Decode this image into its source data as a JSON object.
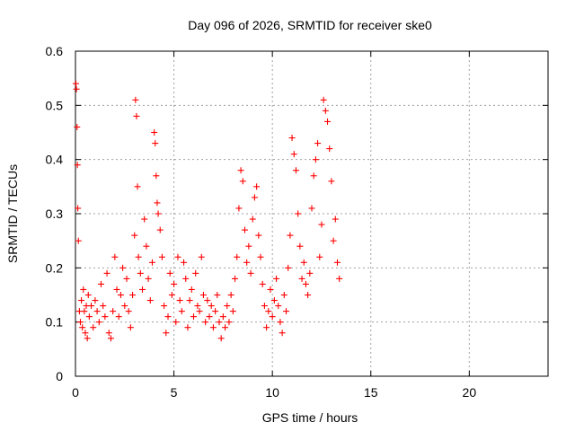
{
  "chart_data": {
    "type": "scatter",
    "title": "Day 096 of 2026, SRMTID for receiver ske0",
    "xlabel": "GPS time / hours",
    "ylabel": "SRMTID / TECUs",
    "xlim": [
      0,
      24
    ],
    "ylim": [
      0,
      0.6
    ],
    "xticks": [
      0,
      5,
      10,
      15,
      20
    ],
    "xtick_labels": [
      "0",
      "5",
      "10",
      "15",
      "20"
    ],
    "yticks": [
      0,
      0.1,
      0.2,
      0.3,
      0.4,
      0.5,
      0.6
    ],
    "ytick_labels": [
      "0",
      "0.1",
      "0.2",
      "0.3",
      "0.4",
      "0.5",
      "0.6"
    ],
    "grid": true,
    "marker": "+",
    "marker_color": "#ff0000",
    "series": [
      {
        "name": "SRMTID",
        "points_note": "approximate values read from the plot",
        "x": [
          0.02,
          0.05,
          0.08,
          0.1,
          0.12,
          0.15,
          0.2,
          0.25,
          0.3,
          0.35,
          0.4,
          0.45,
          0.5,
          0.55,
          0.6,
          0.65,
          0.7,
          0.8,
          0.9,
          1.0,
          1.1,
          1.2,
          1.3,
          1.4,
          1.5,
          1.6,
          1.7,
          1.8,
          1.9,
          2.0,
          2.1,
          2.2,
          2.3,
          2.4,
          2.5,
          2.6,
          2.7,
          2.8,
          2.9,
          3.0,
          3.05,
          3.1,
          3.15,
          3.2,
          3.3,
          3.4,
          3.5,
          3.6,
          3.7,
          3.8,
          3.9,
          4.0,
          4.05,
          4.1,
          4.15,
          4.2,
          4.3,
          4.4,
          4.5,
          4.6,
          4.7,
          4.8,
          4.9,
          5.0,
          5.1,
          5.2,
          5.3,
          5.4,
          5.5,
          5.6,
          5.7,
          5.8,
          5.9,
          6.0,
          6.1,
          6.2,
          6.3,
          6.4,
          6.5,
          6.6,
          6.7,
          6.8,
          6.9,
          7.0,
          7.1,
          7.2,
          7.3,
          7.4,
          7.5,
          7.6,
          7.7,
          7.8,
          7.9,
          8.0,
          8.1,
          8.2,
          8.3,
          8.4,
          8.5,
          8.6,
          8.7,
          8.8,
          8.9,
          9.0,
          9.1,
          9.2,
          9.3,
          9.4,
          9.5,
          9.6,
          9.7,
          9.8,
          9.9,
          10.0,
          10.1,
          10.2,
          10.3,
          10.4,
          10.5,
          10.6,
          10.7,
          10.8,
          10.9,
          11.0,
          11.1,
          11.2,
          11.3,
          11.4,
          11.5,
          11.6,
          11.7,
          11.8,
          11.9,
          12.0,
          12.1,
          12.2,
          12.3,
          12.4,
          12.5,
          12.6,
          12.7,
          12.8,
          12.9,
          13.0,
          13.1,
          13.2,
          13.3,
          13.4
        ],
        "y": [
          0.54,
          0.53,
          0.46,
          0.39,
          0.31,
          0.25,
          0.12,
          0.1,
          0.14,
          0.09,
          0.16,
          0.12,
          0.08,
          0.13,
          0.07,
          0.15,
          0.11,
          0.13,
          0.09,
          0.14,
          0.12,
          0.1,
          0.17,
          0.13,
          0.11,
          0.19,
          0.08,
          0.07,
          0.12,
          0.22,
          0.16,
          0.11,
          0.15,
          0.2,
          0.13,
          0.18,
          0.12,
          0.09,
          0.15,
          0.26,
          0.51,
          0.48,
          0.35,
          0.22,
          0.19,
          0.16,
          0.29,
          0.24,
          0.18,
          0.14,
          0.21,
          0.45,
          0.43,
          0.37,
          0.32,
          0.3,
          0.27,
          0.22,
          0.13,
          0.08,
          0.11,
          0.19,
          0.15,
          0.17,
          0.1,
          0.22,
          0.14,
          0.12,
          0.21,
          0.18,
          0.09,
          0.14,
          0.16,
          0.11,
          0.19,
          0.13,
          0.12,
          0.22,
          0.15,
          0.1,
          0.14,
          0.11,
          0.13,
          0.09,
          0.12,
          0.15,
          0.1,
          0.07,
          0.11,
          0.09,
          0.13,
          0.1,
          0.15,
          0.12,
          0.18,
          0.22,
          0.31,
          0.38,
          0.36,
          0.27,
          0.21,
          0.24,
          0.19,
          0.29,
          0.33,
          0.35,
          0.26,
          0.22,
          0.17,
          0.13,
          0.09,
          0.12,
          0.16,
          0.11,
          0.14,
          0.18,
          0.13,
          0.1,
          0.08,
          0.15,
          0.12,
          0.2,
          0.26,
          0.44,
          0.41,
          0.38,
          0.3,
          0.24,
          0.18,
          0.21,
          0.17,
          0.15,
          0.19,
          0.31,
          0.37,
          0.4,
          0.43,
          0.22,
          0.28,
          0.51,
          0.49,
          0.47,
          0.42,
          0.36,
          0.25,
          0.29,
          0.21,
          0.18
        ]
      }
    ]
  }
}
